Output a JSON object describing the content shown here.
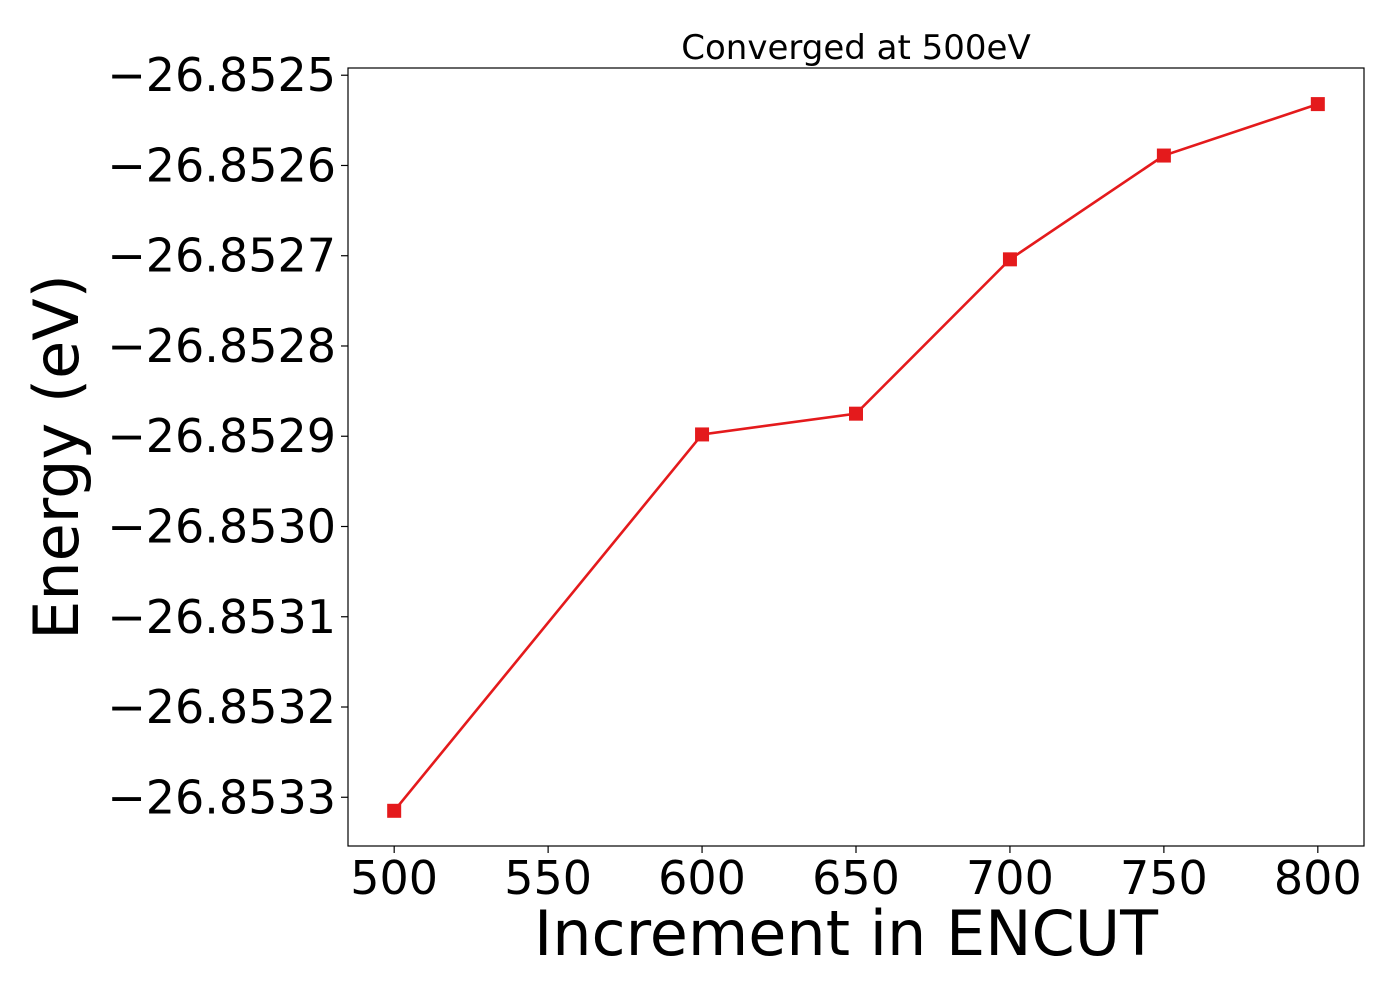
{
  "chart_data": {
    "type": "line",
    "title": "Converged at 500eV",
    "xlabel": "Increment in ENCUT",
    "ylabel": "Energy (eV)",
    "x": [
      500,
      600,
      650,
      700,
      750,
      800
    ],
    "series": [
      {
        "values": [
          -26.853315,
          -26.852898,
          -26.852875,
          -26.852704,
          -26.852589,
          -26.852532
        ],
        "color": "#e41a1c",
        "marker": "square"
      }
    ],
    "xlim": [
      485,
      815
    ],
    "ylim": [
      -26.853354,
      -26.852492
    ],
    "xticks": [
      500,
      550,
      600,
      650,
      700,
      750,
      800
    ],
    "xtick_labels": [
      "500",
      "550",
      "600",
      "650",
      "700",
      "750",
      "800"
    ],
    "yticks": [
      -26.8533,
      -26.8532,
      -26.8531,
      -26.853,
      -26.8529,
      -26.8528,
      -26.8527,
      -26.8526,
      -26.8525
    ],
    "ytick_labels": [
      "−26.8533",
      "−26.8532",
      "−26.8531",
      "−26.8530",
      "−26.8529",
      "−26.8528",
      "−26.8527",
      "−26.8526",
      "−26.8525"
    ],
    "grid": false,
    "legend": "none"
  }
}
